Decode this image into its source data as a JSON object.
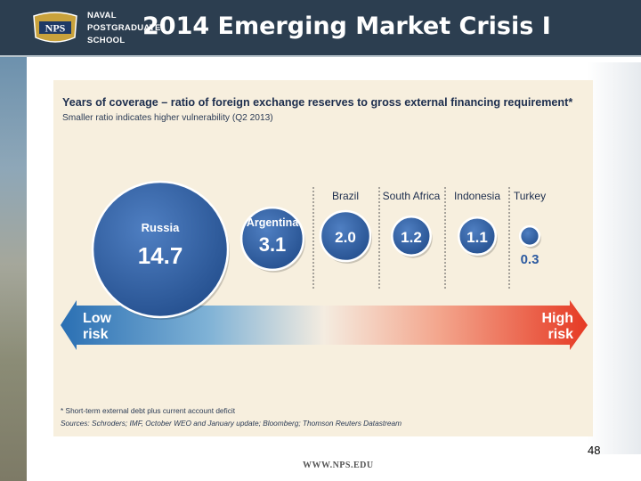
{
  "slide": {
    "title": "2014 Emerging Market Crisis I",
    "page_number": "48",
    "footer_url": "WWW.NPS.EDU"
  },
  "brand": {
    "logo_text": "NPS",
    "school_lines": [
      "NAVAL",
      "POSTGRADUATE",
      "SCHOOL"
    ],
    "header_color": "#2c3e50",
    "bubble_color": "#2c5aa0"
  },
  "chart_data": {
    "type": "bubble",
    "title": "Years of coverage – ratio of foreign exchange reserves to gross external financing requirement*",
    "subtitle": "Smaller ratio indicates higher vulnerability (Q2 2013)",
    "categories": [
      "Russia",
      "Argentina",
      "Brazil",
      "South Africa",
      "Indonesia",
      "Turkey"
    ],
    "values": [
      14.7,
      3.1,
      2.0,
      1.2,
      1.1,
      0.3
    ],
    "value_labels": [
      "14.7",
      "3.1",
      "2.0",
      "1.2",
      "1.1",
      "0.3"
    ],
    "scale": {
      "low_label": "Low risk",
      "high_label": "High risk",
      "low_color": "#2a6fb3",
      "high_color": "#e63a24"
    },
    "footnote": "* Short-term external debt plus current account deficit",
    "sources": "Sources: Schroders; IMF, October WEO and January update; Bloomberg; Thomson Reuters Datastream"
  }
}
